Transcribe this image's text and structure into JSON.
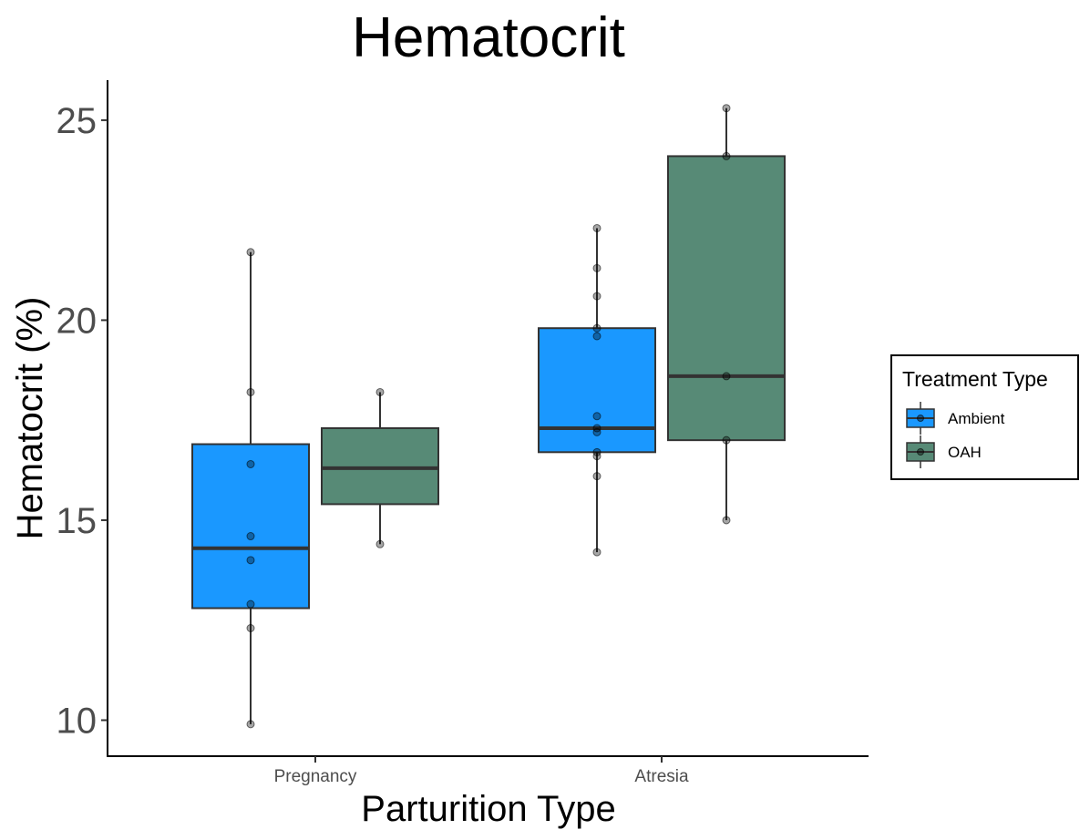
{
  "chart_data": {
    "type": "boxplot",
    "title": "Hematocrit",
    "xlabel": "Parturition Type",
    "ylabel": "Hematocrit (%)",
    "categories": [
      "Pregnancy",
      "Atresia"
    ],
    "ylim": [
      9.1,
      26.0
    ],
    "yticks": [
      10,
      15,
      20,
      25
    ],
    "grid": false,
    "legend": {
      "title": "Treatment Type",
      "placement": "right",
      "entries": [
        {
          "label": "Ambient",
          "color": "#1a98ff"
        },
        {
          "label": "OAH",
          "color": "#578a76"
        }
      ]
    },
    "series": [
      {
        "name": "Ambient",
        "color": "#1a98ff",
        "boxes": [
          {
            "category": "Pregnancy",
            "min": 9.9,
            "q1": 12.8,
            "median": 14.3,
            "q3": 16.9,
            "max": 21.7,
            "points": [
              9.9,
              12.3,
              12.9,
              14.0,
              14.6,
              16.4,
              18.2,
              21.7
            ]
          },
          {
            "category": "Atresia",
            "min": 14.2,
            "q1": 16.7,
            "median": 17.3,
            "q3": 19.8,
            "max": 22.3,
            "points": [
              14.2,
              16.1,
              16.6,
              16.7,
              17.2,
              17.3,
              17.6,
              19.6,
              19.8,
              20.6,
              21.3,
              22.3
            ]
          }
        ]
      },
      {
        "name": "OAH",
        "color": "#578a76",
        "boxes": [
          {
            "category": "Pregnancy",
            "min": 14.4,
            "q1": 15.4,
            "median": 16.3,
            "q3": 17.3,
            "max": 18.2,
            "points": [
              14.4,
              18.2
            ]
          },
          {
            "category": "Atresia",
            "min": 15.0,
            "q1": 17.0,
            "median": 18.6,
            "q3": 24.1,
            "max": 25.3,
            "points": [
              15.0,
              17.0,
              18.6,
              24.1,
              25.3
            ]
          }
        ]
      }
    ]
  }
}
